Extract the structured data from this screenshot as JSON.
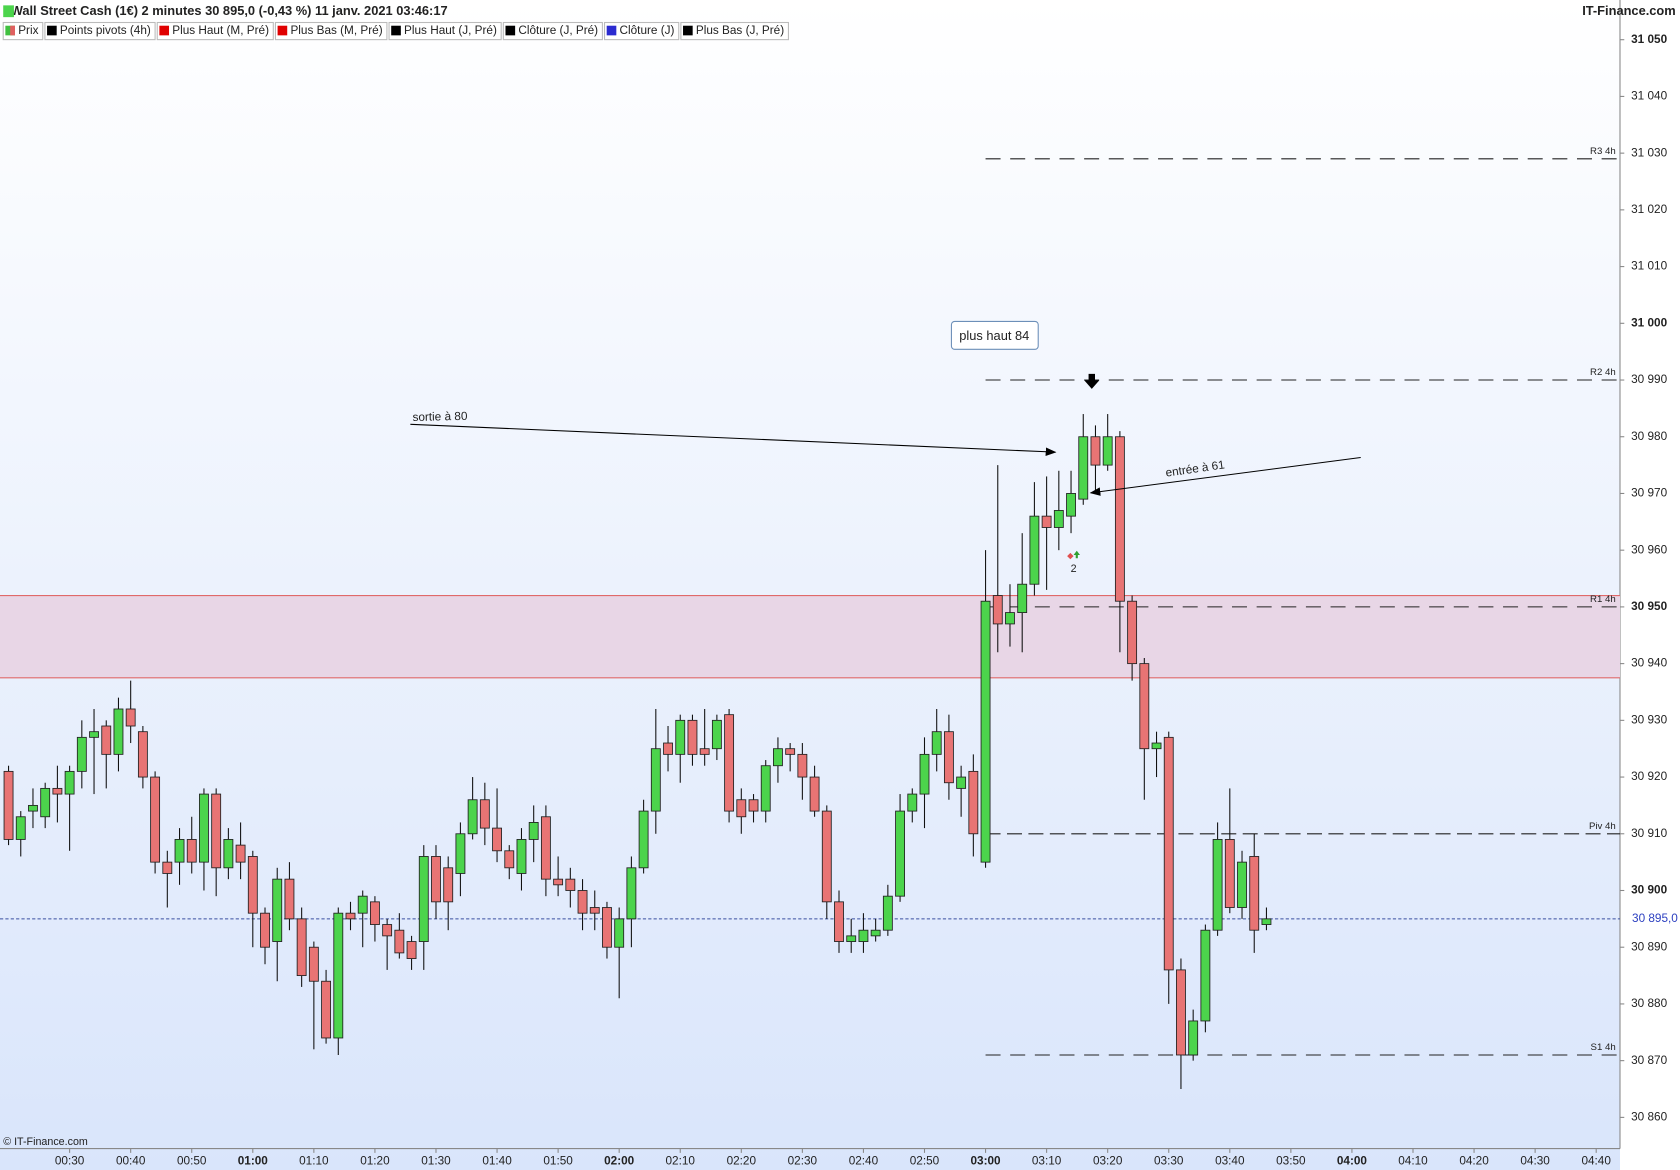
{
  "chart_data": {
    "type": "candlestick",
    "title": "Wall Street Cash (1€) 2 minutes 30 895,0 (-0,43 %) 11 janv. 2021 03:46:17",
    "source": "IT-Finance.com",
    "copyright": "© IT-Finance.com",
    "legend": [
      {
        "name": "Prix",
        "color": "#40c040",
        "color2": "#e06060"
      },
      {
        "name": "Points pivots (4h)",
        "color": "#000000"
      },
      {
        "name": "Plus Haut (M, Pré)",
        "color": "#e00000"
      },
      {
        "name": "Plus Bas (M, Pré)",
        "color": "#e00000"
      },
      {
        "name": "Plus Haut (J, Pré)",
        "color": "#000000"
      },
      {
        "name": "Clôture (J, Pré)",
        "color": "#000000"
      },
      {
        "name": "Clôture (J)",
        "color": "#2b2bd0"
      },
      {
        "name": "Plus Bas (J, Pré)",
        "color": "#000000"
      }
    ],
    "up_color": "#4cd44c",
    "down_color": "#e87474",
    "x": [
      20,
      22,
      24,
      26,
      28,
      30,
      32,
      34,
      36,
      38,
      40,
      42,
      44,
      46,
      48,
      50,
      52,
      54,
      56,
      58,
      60,
      62,
      64,
      66,
      68,
      70,
      72,
      74,
      76,
      78,
      80,
      82,
      84,
      86,
      88,
      90,
      92,
      94,
      96,
      98,
      100,
      102,
      104,
      106,
      108,
      110,
      112,
      114,
      116,
      118,
      120,
      122,
      124,
      126,
      128,
      130,
      132,
      134,
      136,
      138,
      140,
      142,
      144,
      146,
      148,
      150,
      152,
      154,
      156,
      158,
      160,
      162,
      164,
      166,
      168,
      170,
      172,
      174,
      176,
      178,
      180,
      182,
      184,
      186,
      188,
      190,
      192,
      194,
      196,
      198,
      200,
      202,
      204,
      206,
      208,
      210,
      212,
      214,
      216,
      218,
      220,
      222,
      224,
      226
    ],
    "open": [
      30921,
      30909,
      30914,
      30913,
      30918,
      30917,
      30921,
      30927,
      30929,
      30924,
      30932,
      30928,
      30920,
      30905,
      30905,
      30909,
      30905,
      30917,
      30904,
      30908,
      30906,
      30896,
      30891,
      30902,
      30895,
      30890,
      30884,
      30874,
      30896,
      30896,
      30898,
      30894,
      30893,
      30891,
      30891,
      30906,
      30904,
      30903,
      30910,
      30916,
      30911,
      30907,
      30903,
      30909,
      30913,
      30902,
      30902,
      30900,
      30897,
      30897,
      30890,
      30895,
      30904,
      30914,
      30926,
      30924,
      30930,
      30925,
      30925,
      30931,
      30916,
      30916,
      30914,
      30922,
      30925,
      30924,
      30920,
      30914,
      30898,
      30891,
      30891,
      30892,
      30893,
      30899,
      30914,
      30917,
      30924,
      30928,
      30918,
      30921,
      30905,
      30952,
      30947,
      30949,
      30954,
      30966,
      30964,
      30966,
      30969,
      30980,
      30975,
      30980,
      30951,
      30940,
      30925,
      30927,
      30886,
      30871,
      30877,
      30893,
      30909,
      30897,
      30906,
      30894
    ],
    "high": [
      30922,
      30914,
      30918,
      30919,
      30922,
      30922,
      30930,
      30932,
      30930,
      30934,
      30937,
      30929,
      30921,
      30907,
      30911,
      30913,
      30918,
      30918,
      30911,
      30912,
      30907,
      30897,
      30904,
      30905,
      30897,
      30891,
      30886,
      30897,
      30898,
      30900,
      30899,
      30895,
      30896,
      30892,
      30908,
      30908,
      30906,
      30912,
      30920,
      30919,
      30918,
      30908,
      30911,
      30915,
      30915,
      30906,
      30904,
      30902,
      30900,
      30898,
      30897,
      30906,
      30916,
      30932,
      30929,
      30931,
      30931,
      30932,
      30931,
      30932,
      30918,
      30917,
      30923,
      30927,
      30926,
      30926,
      30922,
      30915,
      30900,
      30895,
      30896,
      30895,
      30901,
      30917,
      30918,
      30927,
      30932,
      30931,
      30922,
      30924,
      30960,
      30975,
      30954,
      30963,
      30972,
      30973,
      30974,
      30974,
      30984,
      30982,
      30984,
      30981,
      30952,
      30941,
      30928,
      30928,
      30888,
      30879,
      30894,
      30912,
      30918,
      30907,
      30910,
      30897
    ],
    "low": [
      30908,
      30906,
      30911,
      30911,
      30912,
      30907,
      30918,
      30917,
      30918,
      30921,
      30926,
      30918,
      30903,
      30897,
      30901,
      30903,
      30900,
      30899,
      30902,
      30902,
      30890,
      30887,
      30884,
      30893,
      30883,
      30872,
      30873,
      30871,
      30893,
      30890,
      30891,
      30886,
      30888,
      30886,
      30886,
      30895,
      30893,
      30899,
      30909,
      30908,
      30905,
      30902,
      30900,
      30905,
      30899,
      30899,
      30897,
      30893,
      30893,
      30888,
      30881,
      30890,
      30903,
      30910,
      30921,
      30919,
      30922,
      30922,
      30923,
      30912,
      30910,
      30912,
      30912,
      30919,
      30921,
      30916,
      30913,
      30895,
      30889,
      30889,
      30889,
      30891,
      30892,
      30898,
      30912,
      30911,
      30921,
      30916,
      30913,
      30906,
      30904,
      30942,
      30943,
      30942,
      30952,
      30953,
      30960,
      30963,
      30968,
      30970,
      30974,
      30942,
      30937,
      30916,
      30920,
      30880,
      30865,
      30870,
      30875,
      30892,
      30896,
      30895,
      30889,
      30893
    ],
    "close": [
      30909,
      30913,
      30915,
      30918,
      30917,
      30921,
      30927,
      30928,
      30924,
      30932,
      30929,
      30920,
      30905,
      30903,
      30909,
      30905,
      30917,
      30904,
      30909,
      30905,
      30896,
      30890,
      30902,
      30895,
      30885,
      30884,
      30874,
      30896,
      30895,
      30899,
      30894,
      30892,
      30889,
      30888,
      30906,
      30898,
      30898,
      30910,
      30916,
      30911,
      30907,
      30904,
      30909,
      30912,
      30902,
      30901,
      30900,
      30896,
      30896,
      30890,
      30895,
      30904,
      30914,
      30925,
      30924,
      30930,
      30924,
      30924,
      30930,
      30914,
      30913,
      30914,
      30922,
      30925,
      30924,
      30920,
      30914,
      30898,
      30891,
      30892,
      30893,
      30893,
      30899,
      30914,
      30917,
      30924,
      30928,
      30919,
      30920,
      30910,
      30951,
      30947,
      30949,
      30954,
      30966,
      30964,
      30967,
      30970,
      30980,
      30975,
      30980,
      30951,
      30940,
      30925,
      30926,
      30886,
      30871,
      30877,
      30893,
      30909,
      30897,
      30905,
      30893,
      30895
    ],
    "xlim": [
      18.6,
      283.9
    ],
    "xticks": [
      {
        "value": 30,
        "label": "00:30"
      },
      {
        "value": 40,
        "label": "00:40"
      },
      {
        "value": 50,
        "label": "00:50"
      },
      {
        "value": 60,
        "label": "01:00"
      },
      {
        "value": 70,
        "label": "01:10"
      },
      {
        "value": 80,
        "label": "01:20"
      },
      {
        "value": 90,
        "label": "01:30"
      },
      {
        "value": 100,
        "label": "01:40"
      },
      {
        "value": 110,
        "label": "01:50"
      },
      {
        "value": 120,
        "label": "02:00"
      },
      {
        "value": 130,
        "label": "02:10"
      },
      {
        "value": 140,
        "label": "02:20"
      },
      {
        "value": 150,
        "label": "02:30"
      },
      {
        "value": 160,
        "label": "02:40"
      },
      {
        "value": 170,
        "label": "02:50"
      },
      {
        "value": 180,
        "label": "03:00"
      },
      {
        "value": 190,
        "label": "03:10"
      },
      {
        "value": 200,
        "label": "03:20"
      },
      {
        "value": 210,
        "label": "03:30"
      },
      {
        "value": 220,
        "label": "03:40"
      },
      {
        "value": 230,
        "label": "03:50"
      },
      {
        "value": 240,
        "label": "04:00"
      },
      {
        "value": 250,
        "label": "04:10"
      },
      {
        "value": 260,
        "label": "04:20"
      },
      {
        "value": 270,
        "label": "04:30"
      },
      {
        "value": 280,
        "label": "04:40"
      }
    ],
    "ylim": [
      30854.5,
      31057
    ],
    "yticks": [
      {
        "value": 30860,
        "label": "30 860"
      },
      {
        "value": 30870,
        "label": "30 870"
      },
      {
        "value": 30880,
        "label": "30 880"
      },
      {
        "value": 30890,
        "label": "30 890"
      },
      {
        "value": 30900,
        "label": "30 900"
      },
      {
        "value": 30910,
        "label": "30 910"
      },
      {
        "value": 30920,
        "label": "30 920"
      },
      {
        "value": 30930,
        "label": "30 930"
      },
      {
        "value": 30940,
        "label": "30 940"
      },
      {
        "value": 30950,
        "label": "30 950"
      },
      {
        "value": 30960,
        "label": "30 960"
      },
      {
        "value": 30970,
        "label": "30 970"
      },
      {
        "value": 30980,
        "label": "30 980"
      },
      {
        "value": 30990,
        "label": "30 990"
      },
      {
        "value": 31000,
        "label": "31 000"
      },
      {
        "value": 31010,
        "label": "31 010"
      },
      {
        "value": 31020,
        "label": "31 020"
      },
      {
        "value": 31030,
        "label": "31 030"
      },
      {
        "value": 31040,
        "label": "31 040"
      },
      {
        "value": 31050,
        "label": "31 050"
      }
    ],
    "pivot_start": 180,
    "pivots": [
      {
        "label": "R3 4h",
        "value": 31029
      },
      {
        "label": "R2 4h",
        "value": 30990
      },
      {
        "label": "R1 4h",
        "value": 30950
      },
      {
        "label": "Piv 4h",
        "value": 30910
      },
      {
        "label": "S1 4h",
        "value": 30871
      }
    ],
    "zone": {
      "from": 30937.5,
      "to": 30952
    },
    "last": {
      "value": 30895,
      "label": "30 895,0"
    },
    "annotations": [
      "plus haut 84",
      "sortie à 80",
      "entrée à 61",
      "2"
    ]
  }
}
